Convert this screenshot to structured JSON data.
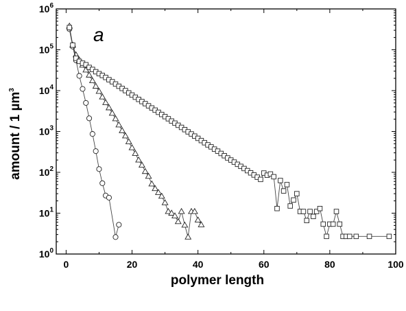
{
  "chart_data": {
    "type": "scatter",
    "panel_label": "a",
    "xlabel": "polymer length",
    "ylabel": "amount / 1 µm",
    "ylabel_sup": "3",
    "xlim": [
      -3,
      100
    ],
    "ylim": [
      1,
      1000000
    ],
    "yscale": "log",
    "x_ticks": [
      0,
      20,
      40,
      60,
      80,
      100
    ],
    "y_ticks": [
      {
        "value": 1,
        "base": "10",
        "exp": "0"
      },
      {
        "value": 10,
        "base": "10",
        "exp": "1"
      },
      {
        "value": 100,
        "base": "10",
        "exp": "2"
      },
      {
        "value": 1000,
        "base": "10",
        "exp": "3"
      },
      {
        "value": 10000,
        "base": "10",
        "exp": "4"
      },
      {
        "value": 100000,
        "base": "10",
        "exp": "5"
      },
      {
        "value": 1000000,
        "base": "10",
        "exp": "6"
      }
    ],
    "grid": false,
    "series": [
      {
        "marker": "circle",
        "connected": true,
        "x": [
          1,
          2,
          3,
          4,
          5,
          6,
          7,
          8,
          9,
          10,
          11,
          12,
          13,
          15,
          16
        ],
        "y": [
          320000,
          120000,
          55000,
          23000,
          11000,
          5000,
          2100,
          870,
          330,
          120,
          54,
          27,
          24,
          2.6,
          5.2
        ]
      },
      {
        "marker": "triangle",
        "connected": true,
        "x": [
          1,
          2,
          3,
          4,
          5,
          6,
          7,
          8,
          9,
          10,
          11,
          12,
          13,
          14,
          15,
          16,
          17,
          18,
          19,
          20,
          21,
          22,
          23,
          24,
          25,
          26,
          27,
          28,
          29,
          30,
          31,
          32,
          33,
          34,
          35,
          36,
          37,
          38,
          39,
          40,
          41
        ],
        "y": [
          380000,
          130000,
          75000,
          56000,
          42000,
          32000,
          24000,
          17500,
          12800,
          9600,
          7000,
          5100,
          3800,
          2800,
          2050,
          1450,
          1050,
          780,
          560,
          400,
          290,
          200,
          150,
          105,
          80,
          52,
          40,
          32,
          26,
          18,
          11,
          10,
          8.6,
          6.2,
          11,
          5.1,
          2.6,
          11,
          11,
          6.8,
          5.2
        ]
      },
      {
        "marker": "square",
        "connected": true,
        "x": [
          1,
          2,
          3,
          4,
          5,
          6,
          7,
          8,
          9,
          10,
          11,
          12,
          13,
          14,
          15,
          16,
          17,
          18,
          19,
          20,
          21,
          22,
          23,
          24,
          25,
          26,
          27,
          28,
          29,
          30,
          31,
          32,
          33,
          34,
          35,
          36,
          37,
          38,
          39,
          40,
          41,
          42,
          43,
          44,
          45,
          46,
          47,
          48,
          49,
          50,
          51,
          52,
          53,
          54,
          55,
          56,
          57,
          58,
          59,
          60,
          61,
          62,
          63,
          64,
          65,
          66,
          67,
          68,
          69,
          70,
          71,
          72,
          73,
          74,
          75,
          76,
          77,
          78,
          79,
          80,
          81,
          82,
          83,
          84,
          85,
          86,
          88,
          92,
          98
        ],
        "y": [
          350000,
          130000,
          62000,
          52000,
          47000,
          43000,
          37000,
          33000,
          29000,
          26000,
          23500,
          21000,
          18500,
          16500,
          14500,
          12800,
          11300,
          10000,
          8800,
          7800,
          6900,
          6100,
          5400,
          4800,
          4250,
          3760,
          3330,
          2950,
          2610,
          2310,
          2050,
          1800,
          1600,
          1420,
          1260,
          1110,
          980,
          870,
          770,
          680,
          600,
          530,
          470,
          420,
          370,
          330,
          290,
          255,
          225,
          200,
          178,
          157,
          140,
          124,
          110,
          97,
          86,
          76,
          67,
          96,
          85,
          91,
          78,
          13,
          63,
          35,
          50,
          15,
          21,
          30,
          11,
          11,
          6.6,
          11,
          8.3,
          11,
          13,
          5.4,
          2.7,
          5.4,
          5.4,
          11,
          5.4,
          2.7,
          2.7,
          2.7,
          2.7,
          2.7,
          2.7
        ]
      }
    ]
  }
}
